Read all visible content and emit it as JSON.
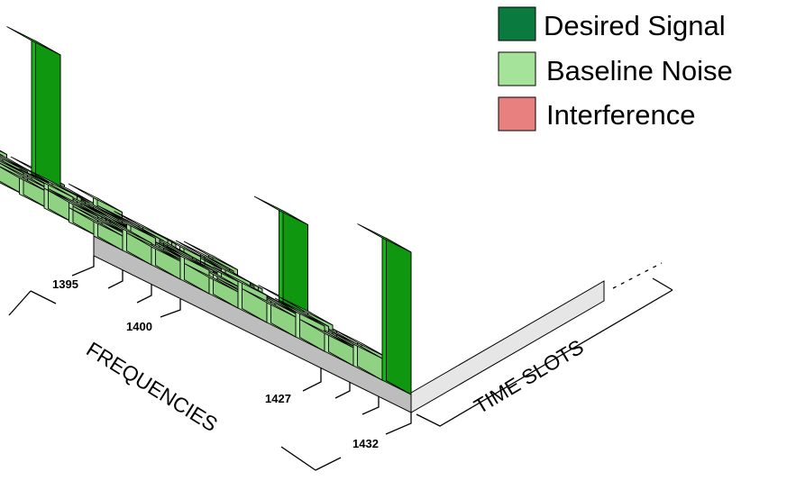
{
  "legend": [
    {
      "label": "Desired Signal",
      "color": "#0b7a3e"
    },
    {
      "label": "Baseline Noise",
      "color": "#a6e39a"
    },
    {
      "label": "Interference",
      "color": "#e88080"
    }
  ],
  "frequency_labels": [
    "1395",
    "1400",
    "1427",
    "1432"
  ],
  "axes": {
    "frequency_title": "FREQUENCIES",
    "time_title": "TIME SLOTS"
  },
  "colors": {
    "noise_top": "#c9efc0",
    "noise_front": "#a6e39a",
    "noise_side": "#8fd382",
    "signal_top": "#2fc02f",
    "signal_front": "#17b217",
    "signal_side": "#0f980f",
    "platform_top": "#e6e6e6",
    "platform_side": "#bdbdbd"
  }
}
